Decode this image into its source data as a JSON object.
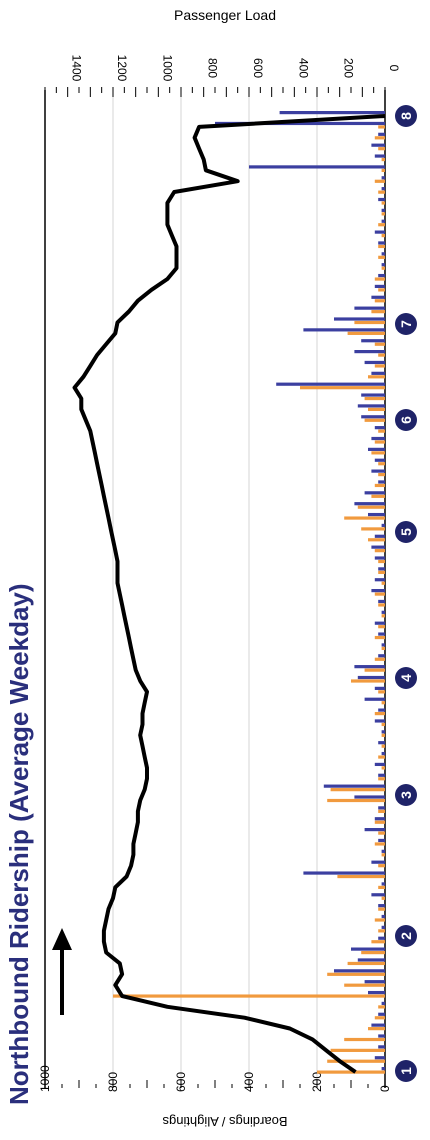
{
  "chart_data": {
    "type": "bar",
    "title": "Northbound Ridership (Average Weekday)",
    "ylabel_left": "Boardings / Alightings",
    "ylabel_right": "Passenger Load",
    "ylim_left": [
      0,
      1000
    ],
    "ylim_right": [
      0,
      1500
    ],
    "yticks_left": [
      "0",
      "200",
      "400",
      "600",
      "800",
      "1000"
    ],
    "yticks_right": [
      "0",
      "200",
      "400",
      "600",
      "800",
      "1000",
      "1200",
      "1400"
    ],
    "timepoints": [
      "1",
      "2",
      "3",
      "4",
      "5",
      "6",
      "7",
      "8"
    ],
    "colors": {
      "boardings": "#f19a3e",
      "alightings": "#3b3fa0",
      "load": "#000000",
      "timepoint": "#1f2368"
    },
    "series": [
      {
        "values": [
          200,
          170,
          160,
          120,
          50,
          30,
          20,
          800,
          120,
          170,
          110,
          70,
          40,
          20,
          30,
          20,
          10,
          20,
          140,
          20,
          10,
          30,
          20,
          30,
          20,
          170,
          160,
          20,
          10,
          20,
          10,
          10,
          10,
          30,
          10,
          20,
          100,
          60,
          30,
          10,
          30,
          20,
          10,
          20,
          30,
          10,
          20,
          20,
          30,
          50,
          70,
          120,
          80,
          40,
          30,
          20,
          20,
          40,
          30,
          20,
          60,
          50,
          60,
          250,
          50,
          30,
          20,
          30,
          110,
          90,
          40,
          30,
          20,
          30,
          10,
          20,
          20,
          10,
          20,
          10,
          10,
          20,
          30,
          10,
          10,
          20,
          30,
          20,
          10
        ]
      },
      {
        "values": [
          10,
          30,
          20,
          20,
          40,
          20,
          10,
          50,
          60,
          150,
          80,
          100,
          20,
          10,
          10,
          20,
          40,
          10,
          240,
          40,
          10,
          20,
          60,
          30,
          20,
          90,
          180,
          20,
          30,
          10,
          20,
          10,
          30,
          20,
          60,
          30,
          80,
          90,
          20,
          10,
          20,
          30,
          10,
          20,
          40,
          30,
          20,
          30,
          40,
          30,
          10,
          50,
          90,
          60,
          20,
          40,
          30,
          50,
          40,
          30,
          70,
          80,
          70,
          320,
          40,
          60,
          90,
          70,
          240,
          150,
          90,
          40,
          30,
          20,
          10,
          10,
          20,
          30,
          10,
          10,
          20,
          10,
          10,
          400,
          30,
          40,
          20,
          500,
          310
        ]
      },
      {
        "values": [
          130,
          200,
          260,
          320,
          420,
          620,
          960,
          1160,
          1190,
          1160,
          1170,
          1230,
          1240,
          1240,
          1230,
          1220,
          1200,
          1190,
          1140,
          1120,
          1110,
          1110,
          1100,
          1090,
          1090,
          1080,
          1060,
          1050,
          1050,
          1060,
          1070,
          1080,
          1070,
          1070,
          1060,
          1050,
          1080,
          1100,
          1110,
          1120,
          1130,
          1140,
          1150,
          1160,
          1170,
          1180,
          1180,
          1180,
          1190,
          1200,
          1210,
          1220,
          1230,
          1240,
          1250,
          1260,
          1270,
          1280,
          1290,
          1300,
          1320,
          1340,
          1340,
          1370,
          1330,
          1300,
          1270,
          1230,
          1190,
          1180,
          1130,
          1090,
          1030,
          960,
          920,
          920,
          920,
          940,
          960,
          960,
          960,
          930,
          650,
          790,
          800,
          820,
          840,
          820,
          0
        ]
      }
    ]
  }
}
